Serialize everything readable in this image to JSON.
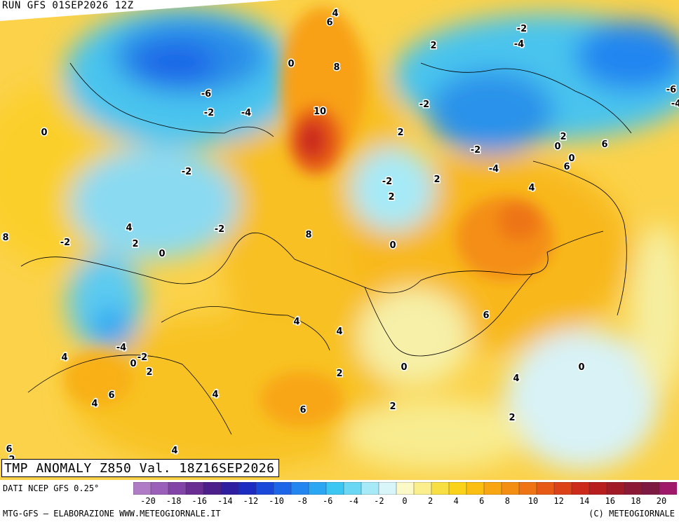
{
  "header": {
    "run_label": "RUN GFS 01SEP2026 12Z"
  },
  "map": {
    "title": "TMP ANOMALY Z850 Val. 18Z16SEP2026",
    "value_labels": [
      "4",
      "6",
      "0",
      "2",
      "-2",
      "-4",
      "8",
      "-6",
      "-2",
      "-4",
      "-2",
      "10",
      "0",
      "2",
      "6",
      "-2",
      "0",
      "2",
      "-2",
      "-4",
      "2",
      "-2",
      "2",
      "0",
      "6",
      "4",
      "-2",
      "4",
      "8",
      "0",
      "8",
      "2",
      "0",
      "-2",
      "0",
      "4",
      "4",
      "6",
      "-4",
      "-2",
      "0",
      "2",
      "0",
      "4",
      "2",
      "4",
      "0",
      "6",
      "4",
      "4",
      "6",
      "2",
      "2",
      "6",
      "2",
      "4",
      "-6",
      "-4"
    ]
  },
  "legend": {
    "source": "DATI NCEP GFS 0.25°",
    "scale_colors": [
      "#b07cc6",
      "#9a5fb8",
      "#8244a6",
      "#6a2d92",
      "#4c1f8a",
      "#2f1fa0",
      "#1c2cc0",
      "#1a48d8",
      "#1e66e8",
      "#2386f0",
      "#2ba6f2",
      "#3cc6f2",
      "#6ad8f4",
      "#a6eaf8",
      "#d8f6f9",
      "#fbf9c8",
      "#fbee8c",
      "#f8e044",
      "#fbd21a",
      "#fbbf14",
      "#f8a612",
      "#f48e12",
      "#ee7414",
      "#e65a16",
      "#dc4218",
      "#cc2a1a",
      "#b81e1e",
      "#a01a28",
      "#8c1a36",
      "#7c1a42",
      "#a0186a"
    ],
    "tick_labels": [
      "-20",
      "-18",
      "-16",
      "-14",
      "-12",
      "-10",
      "-8",
      "-6",
      "-4",
      "-2",
      "0",
      "2",
      "4",
      "6",
      "8",
      "10",
      "12",
      "14",
      "16",
      "18",
      "20"
    ],
    "credit": "MTG-GFS — ELABORAZIONE WWW.METEOGIORNALE.IT",
    "copyright": "(C) METEOGIORNALE"
  }
}
